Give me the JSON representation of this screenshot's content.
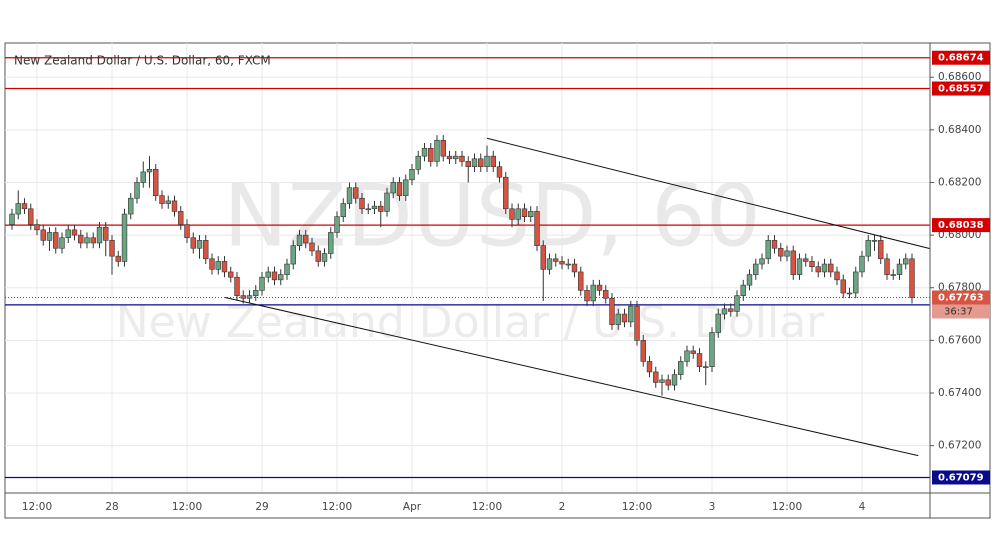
{
  "chart_data": {
    "type": "candlestick",
    "title": "New Zealand Dollar / U.S. Dollar, 60, FXCM",
    "watermark": [
      "NZDUSD, 60",
      "New Zealand Dollar / U.S. Dollar"
    ],
    "categories": [
      null,
      null,
      null,
      null,
      "12:00",
      null,
      null,
      null,
      null,
      null,
      null,
      null,
      null,
      null,
      null,
      null,
      "28",
      null,
      null,
      null,
      null,
      null,
      null,
      null,
      null,
      null,
      null,
      null,
      "12:00",
      null,
      null,
      null,
      null,
      null,
      null,
      null,
      null,
      null,
      null,
      null,
      "29",
      null,
      null,
      null,
      null,
      null,
      null,
      null,
      null,
      null,
      null,
      null,
      "12:00",
      null,
      null,
      null,
      null,
      null,
      null,
      null,
      null,
      null,
      null,
      null,
      "Apr",
      null,
      null,
      null,
      null,
      null,
      null,
      null,
      null,
      null,
      null,
      null,
      "12:00",
      null,
      null,
      null,
      null,
      null,
      null,
      null,
      null,
      null,
      null,
      null,
      "2",
      null,
      null,
      null,
      null,
      null,
      null,
      null,
      null,
      null,
      null,
      null,
      "12:00",
      null,
      null,
      null,
      null,
      null,
      null,
      null,
      null,
      null,
      null,
      null,
      "3",
      null,
      null,
      null,
      null,
      null,
      null,
      null,
      null,
      null,
      null,
      null,
      "12:00",
      null,
      null,
      null,
      null,
      null,
      null,
      null,
      null,
      null,
      null,
      null,
      "4",
      null,
      null,
      null,
      null,
      null,
      null,
      null,
      null
    ],
    "open": [
      0.6804,
      0.6808,
      0.6812,
      0.681,
      0.6804,
      0.6802,
      0.6798,
      0.6801,
      0.6795,
      0.6799,
      0.6802,
      0.68,
      0.6797,
      0.6799,
      0.6797,
      0.6803,
      0.6798,
      0.6792,
      0.679,
      0.6808,
      0.6814,
      0.682,
      0.6824,
      0.6825,
      0.6815,
      0.6812,
      0.6813,
      0.6809,
      0.6804,
      0.6799,
      0.6795,
      0.6798,
      0.6791,
      0.6787,
      0.679,
      0.6786,
      0.6784,
      0.6777,
      0.6776,
      0.6777,
      0.6779,
      0.6784,
      0.6786,
      0.6783,
      0.6785,
      0.6789,
      0.6796,
      0.68,
      0.6797,
      0.6794,
      0.679,
      0.6793,
      0.6801,
      0.6807,
      0.6812,
      0.6818,
      0.6814,
      0.681,
      0.681,
      0.6811,
      0.6809,
      0.6816,
      0.682,
      0.6815,
      0.6821,
      0.6825,
      0.683,
      0.6833,
      0.6828,
      0.6836,
      0.683,
      0.6829,
      0.683,
      0.6828,
      0.6826,
      0.6829,
      0.6826,
      0.683,
      0.6826,
      0.6822,
      0.681,
      0.6806,
      0.681,
      0.6807,
      0.6809,
      0.6796,
      0.6787,
      0.6791,
      0.679,
      0.6789,
      0.6789,
      0.6786,
      0.6779,
      0.6775,
      0.6781,
      0.6779,
      0.6776,
      0.6766,
      0.677,
      0.6767,
      0.6773,
      0.676,
      0.6752,
      0.6748,
      0.6744,
      0.6745,
      0.6743,
      0.6747,
      0.6752,
      0.6756,
      0.6755,
      0.675,
      0.675,
      0.6763,
      0.677,
      0.6772,
      0.6771,
      0.6777,
      0.6781,
      0.6785,
      0.6789,
      0.6791,
      0.6798,
      0.6795,
      0.6792,
      0.6794,
      0.6785,
      0.6791,
      0.679,
      0.6788,
      0.6786,
      0.6789,
      0.6786,
      0.6783,
      0.6778,
      0.6778,
      0.6786,
      0.6792,
      0.6798,
      0.6798,
      0.6791,
      0.6785,
      0.6785,
      0.6789,
      0.6791
    ],
    "high": [
      0.681,
      0.6817,
      0.6814,
      0.6812,
      0.6806,
      0.6804,
      0.6803,
      0.6803,
      0.6801,
      0.6804,
      0.6804,
      0.6802,
      0.6801,
      0.6801,
      0.6805,
      0.6805,
      0.68,
      0.6794,
      0.681,
      0.6816,
      0.6822,
      0.6828,
      0.683,
      0.6827,
      0.6817,
      0.6815,
      0.6815,
      0.6811,
      0.6806,
      0.6801,
      0.68,
      0.68,
      0.6793,
      0.6792,
      0.6792,
      0.6788,
      0.6786,
      0.6779,
      0.6779,
      0.6781,
      0.6786,
      0.6788,
      0.6788,
      0.6787,
      0.6791,
      0.6798,
      0.6802,
      0.6802,
      0.6799,
      0.6796,
      0.6795,
      0.6803,
      0.6809,
      0.6814,
      0.682,
      0.682,
      0.6816,
      0.6812,
      0.6813,
      0.6813,
      0.6818,
      0.6822,
      0.6822,
      0.6823,
      0.6827,
      0.6832,
      0.6835,
      0.6835,
      0.6838,
      0.6838,
      0.6832,
      0.6832,
      0.6832,
      0.683,
      0.6831,
      0.6831,
      0.6834,
      0.6832,
      0.6828,
      0.6824,
      0.6812,
      0.6812,
      0.6812,
      0.6811,
      0.6811,
      0.6798,
      0.6793,
      0.6793,
      0.6792,
      0.6791,
      0.6791,
      0.6788,
      0.6781,
      0.6783,
      0.6783,
      0.6781,
      0.6778,
      0.6772,
      0.6772,
      0.6775,
      0.6775,
      0.6762,
      0.6754,
      0.675,
      0.6747,
      0.6747,
      0.6749,
      0.6754,
      0.6758,
      0.6758,
      0.6757,
      0.6752,
      0.6765,
      0.6772,
      0.6774,
      0.6774,
      0.6779,
      0.6783,
      0.6787,
      0.6791,
      0.6793,
      0.68,
      0.68,
      0.6797,
      0.6796,
      0.6796,
      0.6793,
      0.6793,
      0.6792,
      0.679,
      0.6791,
      0.6791,
      0.6788,
      0.6785,
      0.678,
      0.6788,
      0.6794,
      0.68,
      0.68,
      0.68,
      0.6793,
      0.6787,
      0.6791,
      0.6793,
      0.6793
    ],
    "low": [
      0.6802,
      0.6806,
      0.6808,
      0.6802,
      0.68,
      0.6796,
      0.6794,
      0.6793,
      0.6793,
      0.6797,
      0.6798,
      0.6795,
      0.6795,
      0.6795,
      0.6795,
      0.6792,
      0.6785,
      0.6788,
      0.6788,
      0.6806,
      0.6812,
      0.6818,
      0.6818,
      0.6813,
      0.681,
      0.681,
      0.6807,
      0.6802,
      0.6797,
      0.6793,
      0.6791,
      0.6789,
      0.6785,
      0.6785,
      0.6784,
      0.6782,
      0.6775,
      0.6774,
      0.6774,
      0.6775,
      0.6777,
      0.6782,
      0.6781,
      0.6781,
      0.6783,
      0.6787,
      0.6794,
      0.6795,
      0.6792,
      0.6788,
      0.6788,
      0.6791,
      0.6799,
      0.6805,
      0.681,
      0.6812,
      0.6808,
      0.6808,
      0.6808,
      0.6803,
      0.6807,
      0.6814,
      0.6813,
      0.6813,
      0.6819,
      0.6823,
      0.6828,
      0.6826,
      0.6826,
      0.6828,
      0.6827,
      0.6827,
      0.6826,
      0.682,
      0.6824,
      0.6824,
      0.6824,
      0.6824,
      0.682,
      0.6808,
      0.6803,
      0.6804,
      0.6805,
      0.6805,
      0.6794,
      0.6775,
      0.6785,
      0.6788,
      0.6787,
      0.6787,
      0.6784,
      0.6777,
      0.6773,
      0.6773,
      0.6777,
      0.6774,
      0.6764,
      0.6764,
      0.6765,
      0.6765,
      0.6758,
      0.675,
      0.6746,
      0.6742,
      0.6739,
      0.6741,
      0.6741,
      0.6745,
      0.675,
      0.6753,
      0.6748,
      0.6743,
      0.6748,
      0.6761,
      0.6768,
      0.6769,
      0.6769,
      0.6775,
      0.6779,
      0.6783,
      0.6787,
      0.6789,
      0.6793,
      0.679,
      0.679,
      0.6783,
      0.6783,
      0.6788,
      0.6786,
      0.6784,
      0.6784,
      0.6784,
      0.6781,
      0.6776,
      0.6776,
      0.6776,
      0.6784,
      0.679,
      0.6794,
      0.6789,
      0.6783,
      0.6783,
      0.6783,
      0.6787,
      0.6774
    ],
    "close": [
      0.6808,
      0.6812,
      0.681,
      0.6804,
      0.6802,
      0.6798,
      0.6801,
      0.6795,
      0.6799,
      0.6802,
      0.68,
      0.6797,
      0.6799,
      0.6797,
      0.6803,
      0.6798,
      0.6792,
      0.679,
      0.6808,
      0.6814,
      0.682,
      0.6824,
      0.6825,
      0.6815,
      0.6812,
      0.6813,
      0.6809,
      0.6804,
      0.6799,
      0.6795,
      0.6798,
      0.6791,
      0.6787,
      0.679,
      0.6786,
      0.6784,
      0.6777,
      0.6776,
      0.6777,
      0.6779,
      0.6784,
      0.6786,
      0.6783,
      0.6785,
      0.6789,
      0.6796,
      0.68,
      0.6797,
      0.6794,
      0.679,
      0.6793,
      0.6801,
      0.6807,
      0.6812,
      0.6818,
      0.6814,
      0.681,
      0.681,
      0.6811,
      0.6809,
      0.6816,
      0.682,
      0.6815,
      0.6821,
      0.6825,
      0.683,
      0.6833,
      0.6828,
      0.6836,
      0.683,
      0.6829,
      0.683,
      0.6828,
      0.6826,
      0.6829,
      0.6826,
      0.683,
      0.6826,
      0.6822,
      0.681,
      0.6806,
      0.681,
      0.6807,
      0.6809,
      0.6796,
      0.6787,
      0.6791,
      0.679,
      0.6789,
      0.6789,
      0.6786,
      0.6779,
      0.6775,
      0.6781,
      0.6779,
      0.6776,
      0.6766,
      0.677,
      0.6767,
      0.6773,
      0.676,
      0.6752,
      0.6748,
      0.6744,
      0.6745,
      0.6743,
      0.6747,
      0.6752,
      0.6756,
      0.6755,
      0.675,
      0.675,
      0.6763,
      0.677,
      0.6772,
      0.6771,
      0.6777,
      0.6781,
      0.6785,
      0.6789,
      0.6791,
      0.6798,
      0.6795,
      0.6792,
      0.6794,
      0.6785,
      0.6791,
      0.679,
      0.6788,
      0.6786,
      0.6789,
      0.6786,
      0.6783,
      0.6778,
      0.6778,
      0.6786,
      0.6792,
      0.6798,
      0.6798,
      0.6791,
      0.6785,
      0.6785,
      0.6789,
      0.6791,
      0.67763
    ],
    "up_color": "#6ba583",
    "down_color": "#d75442",
    "ylim": [
      0.6702,
      0.6873
    ],
    "yticks": [
      {
        "value": 0.672,
        "label": "0.67200"
      },
      {
        "value": 0.674,
        "label": "0.67400"
      },
      {
        "value": 0.676,
        "label": "0.67600"
      },
      {
        "value": 0.678,
        "label": "0.67800"
      },
      {
        "value": 0.68,
        "label": "0.68000"
      },
      {
        "value": 0.682,
        "label": "0.68200"
      },
      {
        "value": 0.684,
        "label": "0.68400"
      },
      {
        "value": 0.686,
        "label": "0.68600"
      }
    ],
    "grid": true,
    "levels": [
      {
        "value": 0.68674,
        "color": "#d40000"
      },
      {
        "value": 0.68557,
        "color": "#d40000"
      },
      {
        "value": 0.68038,
        "color": "#d40000"
      },
      {
        "value": 0.67735,
        "color": "#0a0a8c"
      },
      {
        "value": 0.67079,
        "color": "#0a0a8c"
      }
    ],
    "last_price": {
      "value": 0.67763,
      "countdown": "36:37",
      "color": "#d75442"
    },
    "trend_lines": [
      {
        "x": [
          76,
          146.8
        ],
        "y": [
          0.68368,
          0.67949
        ]
      },
      {
        "x": [
          34.1,
          145
        ],
        "y": [
          0.67763,
          0.67162
        ]
      }
    ]
  }
}
